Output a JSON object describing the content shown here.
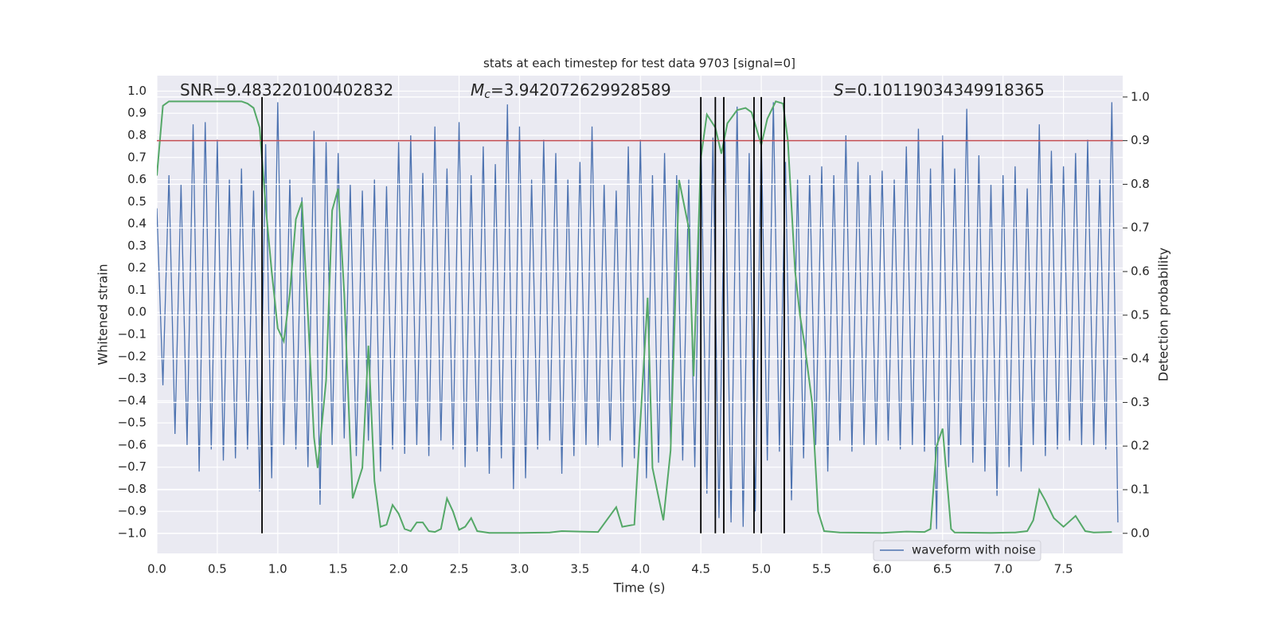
{
  "chart_data": {
    "type": "line",
    "title": "stats at each timestep for test data 9703 [signal=0]",
    "xlabel": "Time (s)",
    "ylabel": "Whitened strain",
    "y2label": "Detection probability",
    "annotations": [
      {
        "text": "SNR=9.483220100402832"
      },
      {
        "italic": "M",
        "sub": "c",
        "text": "=3.942072629928589"
      },
      {
        "italic": "S",
        "text": "=0.10119034349918365"
      }
    ],
    "xlim": [
      0,
      7.99
    ],
    "ylim": [
      -1.09,
      1.07
    ],
    "y2lim": [
      -0.046,
      1.049
    ],
    "xticks": [
      {
        "value": 0,
        "label": "0.0"
      },
      0.5,
      {
        "value": 1,
        "label": "1.0"
      },
      1.5,
      {
        "value": 2,
        "label": "2.0"
      },
      2.5,
      {
        "value": 3,
        "label": "3.0"
      },
      3.5,
      {
        "value": 4,
        "label": "4.0"
      },
      4.5,
      {
        "value": 5,
        "label": "5.0"
      },
      5.5,
      {
        "value": 6,
        "label": "6.0"
      },
      6.5,
      {
        "value": 7,
        "label": "7.0"
      },
      7.5
    ],
    "yticks": [
      {
        "value": -1,
        "label": "−1.0"
      },
      {
        "value": -0.9,
        "label": "−0.9"
      },
      {
        "value": -0.8,
        "label": "−0.8"
      },
      {
        "value": -0.7,
        "label": "−0.7"
      },
      {
        "value": -0.6,
        "label": "−0.6"
      },
      {
        "value": -0.5,
        "label": "−0.5"
      },
      {
        "value": -0.4,
        "label": "−0.4"
      },
      {
        "value": -0.3,
        "label": "−0.3"
      },
      {
        "value": -0.2,
        "label": "−0.2"
      },
      {
        "value": -0.1,
        "label": "−0.1"
      },
      {
        "value": 0,
        "label": "0.0"
      },
      0.1,
      0.2,
      0.3,
      0.4,
      0.5,
      0.6,
      0.7,
      0.8,
      0.9,
      {
        "value": 1,
        "label": "1.0"
      }
    ],
    "y2ticks": [
      {
        "value": 0,
        "label": "0.0"
      },
      0.1,
      0.2,
      0.3,
      0.4,
      0.5,
      0.6,
      0.7,
      0.8,
      0.9,
      {
        "value": 1,
        "label": "1.0"
      }
    ],
    "grid": true,
    "legend": "lower right",
    "series": [
      {
        "name": "waveform with noise",
        "color": "#4c72b0",
        "x": [
          0,
          0.05,
          0.1,
          0.15,
          0.2,
          0.25,
          0.3,
          0.35,
          0.4,
          0.45,
          0.5,
          0.55,
          0.6,
          0.65,
          0.7,
          0.75,
          0.8,
          0.85,
          0.9,
          0.95,
          1,
          1.05,
          1.1,
          1.15,
          1.2,
          1.25,
          1.3,
          1.35,
          1.4,
          1.45,
          1.5,
          1.55,
          1.6,
          1.65,
          1.7,
          1.75,
          1.8,
          1.85,
          1.9,
          1.95,
          2,
          2.05,
          2.1,
          2.15,
          2.2,
          2.25,
          2.3,
          2.35,
          2.4,
          2.45,
          2.5,
          2.55,
          2.6,
          2.65,
          2.7,
          2.75,
          2.8,
          2.85,
          2.9,
          2.95,
          3,
          3.05,
          3.1,
          3.15,
          3.2,
          3.25,
          3.3,
          3.35,
          3.4,
          3.45,
          3.5,
          3.55,
          3.6,
          3.65,
          3.7,
          3.75,
          3.8,
          3.85,
          3.9,
          3.95,
          4,
          4.05,
          4.1,
          4.15,
          4.2,
          4.25,
          4.3,
          4.35,
          4.4,
          4.45,
          4.5,
          4.55,
          4.6,
          4.65,
          4.7,
          4.75,
          4.8,
          4.85,
          4.9,
          4.95,
          5,
          5.05,
          5.1,
          5.15,
          5.2,
          5.25,
          5.3,
          5.35,
          5.4,
          5.45,
          5.5,
          5.55,
          5.6,
          5.65,
          5.7,
          5.75,
          5.8,
          5.85,
          5.9,
          5.95,
          6,
          6.05,
          6.1,
          6.15,
          6.2,
          6.25,
          6.3,
          6.35,
          6.4,
          6.45,
          6.5,
          6.55,
          6.6,
          6.65,
          6.7,
          6.75,
          6.8,
          6.85,
          6.9,
          6.95,
          7,
          7.05,
          7.1,
          7.15,
          7.2,
          7.25,
          7.3,
          7.35,
          7.4,
          7.45,
          7.5,
          7.55,
          7.6,
          7.65,
          7.7,
          7.75,
          7.8,
          7.85,
          7.9,
          7.95
        ],
        "values": [
          0.47,
          -0.33,
          0.62,
          -0.55,
          0.58,
          -0.6,
          0.85,
          -0.72,
          0.86,
          -0.62,
          0.78,
          -0.67,
          0.6,
          -0.66,
          0.65,
          -0.62,
          0.55,
          -0.81,
          0.76,
          -0.75,
          0.95,
          -0.6,
          0.6,
          -0.62,
          0.52,
          -0.7,
          0.82,
          -0.87,
          0.77,
          -0.6,
          0.72,
          -0.57,
          0.58,
          -0.65,
          0.55,
          -0.58,
          0.6,
          -0.72,
          0.57,
          -0.62,
          0.77,
          -0.64,
          0.8,
          -0.6,
          0.63,
          -0.65,
          0.84,
          -0.58,
          0.65,
          -0.62,
          0.86,
          -0.7,
          0.62,
          -0.63,
          0.75,
          -0.73,
          0.67,
          -0.66,
          0.94,
          -0.8,
          0.84,
          -0.75,
          0.6,
          -0.62,
          0.78,
          -0.58,
          0.72,
          -0.73,
          0.6,
          -0.65,
          0.68,
          -0.6,
          0.84,
          -0.61,
          0.58,
          -0.58,
          0.55,
          -0.7,
          0.75,
          -0.66,
          0.78,
          -0.75,
          0.62,
          -0.68,
          0.72,
          -0.6,
          0.62,
          -0.67,
          0.6,
          -0.7,
          0.82,
          -0.82,
          0.79,
          -0.93,
          0.78,
          -0.95,
          0.93,
          -0.97,
          0.72,
          -0.9,
          0.8,
          -0.67,
          0.95,
          -0.63,
          0.68,
          -0.85,
          0.6,
          -0.66,
          0.62,
          -0.6,
          0.66,
          -0.72,
          0.62,
          -0.58,
          0.8,
          -0.63,
          0.68,
          -0.6,
          0.62,
          -0.6,
          0.64,
          -0.58,
          0.6,
          -0.62,
          0.75,
          -0.6,
          0.83,
          -0.63,
          0.65,
          -0.98,
          0.8,
          -0.7,
          0.65,
          -0.6,
          0.92,
          -0.68,
          0.71,
          -0.72,
          0.58,
          -0.83,
          0.62,
          -0.7,
          0.66,
          -0.72,
          0.56,
          -0.6,
          0.85,
          -0.65,
          0.73,
          -0.62,
          0.66,
          -0.58,
          0.72,
          -0.6,
          0.78,
          -0.6,
          0.6,
          -0.62,
          0.95,
          -0.95
        ]
      },
      {
        "color": "#55a868",
        "axis": "y2",
        "x": [
          0,
          0.05,
          0.1,
          0.2,
          0.3,
          0.4,
          0.5,
          0.6,
          0.7,
          0.75,
          0.8,
          0.85,
          0.9,
          0.95,
          1,
          1.05,
          1.1,
          1.15,
          1.2,
          1.25,
          1.3,
          1.33,
          1.4,
          1.45,
          1.5,
          1.55,
          1.6,
          1.62,
          1.7,
          1.75,
          1.8,
          1.85,
          1.9,
          1.95,
          2,
          2.05,
          2.1,
          2.15,
          2.2,
          2.25,
          2.3,
          2.35,
          2.4,
          2.45,
          2.5,
          2.55,
          2.6,
          2.65,
          2.75,
          3,
          3.25,
          3.35,
          3.5,
          3.65,
          3.8,
          3.85,
          3.95,
          4.06,
          4.1,
          4.19,
          4.25,
          4.32,
          4.4,
          4.44,
          4.5,
          4.55,
          4.62,
          4.67,
          4.72,
          4.8,
          4.87,
          4.92,
          5,
          5.05,
          5.12,
          5.18,
          5.22,
          5.28,
          5.32,
          5.36,
          5.42,
          5.47,
          5.52,
          5.65,
          6,
          6.2,
          6.35,
          6.4,
          6.45,
          6.5,
          6.57,
          6.6,
          6.9,
          7.1,
          7.2,
          7.25,
          7.3,
          7.35,
          7.42,
          7.5,
          7.6,
          7.68,
          7.75,
          7.9
        ],
        "values": [
          0.82,
          0.98,
          0.99,
          0.99,
          0.99,
          0.99,
          0.99,
          0.99,
          0.99,
          0.985,
          0.975,
          0.93,
          0.75,
          0.6,
          0.47,
          0.44,
          0.55,
          0.72,
          0.76,
          0.5,
          0.22,
          0.15,
          0.35,
          0.74,
          0.79,
          0.55,
          0.2,
          0.08,
          0.15,
          0.43,
          0.12,
          0.015,
          0.02,
          0.065,
          0.045,
          0.01,
          0.005,
          0.025,
          0.025,
          0.005,
          0.003,
          0.01,
          0.08,
          0.05,
          0.008,
          0.015,
          0.035,
          0.005,
          0.001,
          0.001,
          0.002,
          0.005,
          0.004,
          0.003,
          0.06,
          0.015,
          0.02,
          0.54,
          0.15,
          0.03,
          0.19,
          0.81,
          0.7,
          0.36,
          0.86,
          0.96,
          0.93,
          0.87,
          0.94,
          0.97,
          0.975,
          0.965,
          0.89,
          0.95,
          0.99,
          0.985,
          0.9,
          0.6,
          0.5,
          0.43,
          0.3,
          0.05,
          0.005,
          0.002,
          0.001,
          0.004,
          0.003,
          0.01,
          0.2,
          0.24,
          0.01,
          0.002,
          0.001,
          0.002,
          0.005,
          0.03,
          0.1,
          0.075,
          0.035,
          0.015,
          0.04,
          0.005,
          0.002,
          0.003
        ]
      }
    ],
    "threshold": {
      "value": 0.9,
      "axis": "y2",
      "color": "#c44e52"
    },
    "markers": {
      "x": [
        0.87,
        4.5,
        4.62,
        4.69,
        4.94,
        5.0,
        5.19
      ],
      "span": [
        0,
        1
      ],
      "axis": "y2",
      "color": "#000000"
    }
  }
}
